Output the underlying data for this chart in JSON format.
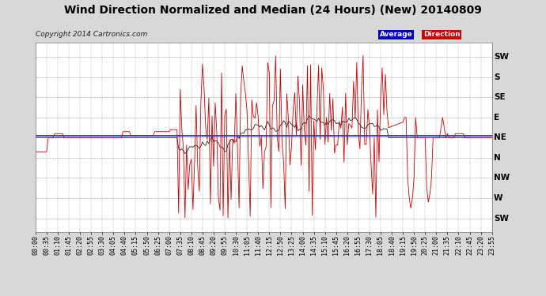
{
  "title": "Wind Direction Normalized and Median (24 Hours) (New) 20140809",
  "copyright": "Copyright 2014 Cartronics.com",
  "background_color": "#d8d8d8",
  "plot_bg_color": "#ffffff",
  "grid_color": "#999999",
  "ytick_labels": [
    "SW",
    "S",
    "SE",
    "E",
    "NE",
    "N",
    "NW",
    "W",
    "SW"
  ],
  "ytick_values": [
    9,
    8,
    7,
    6,
    5,
    4,
    3,
    2,
    1
  ],
  "median_line_color": "#3333cc",
  "median_value": 5.1,
  "red_line_color": "#cc0000",
  "dark_line_color": "#222222",
  "legend_bg_blue": "#0000bb",
  "legend_bg_red": "#cc0000",
  "title_fontsize": 10,
  "copyright_fontsize": 6.5,
  "tick_fontsize": 6
}
